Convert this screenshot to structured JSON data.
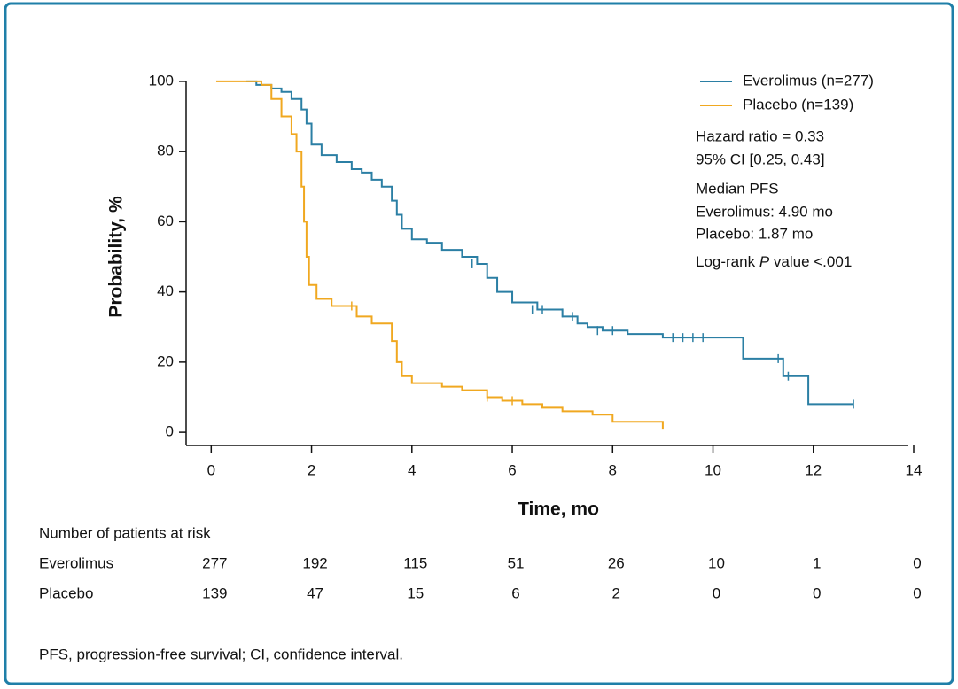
{
  "chart_data": {
    "type": "line",
    "step": "post",
    "x_label": "Time, mo",
    "y_label": "Probability, %",
    "xlim": [
      -0.5,
      14
    ],
    "ylim": [
      -3,
      102
    ],
    "xticks": [
      0,
      2,
      4,
      6,
      8,
      10,
      12,
      14
    ],
    "yticks": [
      0,
      20,
      40,
      60,
      80,
      100
    ],
    "series": [
      {
        "name": "Everolimus (n=277)",
        "color": "#2b7fa4",
        "x": [
          0.7,
          0.9,
          1.2,
          1.4,
          1.6,
          1.8,
          1.9,
          2.0,
          2.2,
          2.5,
          2.8,
          3.0,
          3.2,
          3.4,
          3.6,
          3.7,
          3.8,
          4.0,
          4.3,
          4.6,
          5.0,
          5.3,
          5.5,
          5.7,
          6.0,
          6.5,
          7.0,
          7.3,
          7.5,
          7.8,
          8.3,
          9.0,
          10.6,
          11.4,
          11.9,
          12.8
        ],
        "values": [
          100,
          99,
          98,
          97,
          95,
          92,
          88,
          82,
          79,
          77,
          75,
          74,
          72,
          70,
          66,
          62,
          58,
          55,
          54,
          52,
          50,
          48,
          44,
          40,
          37,
          35,
          33,
          31,
          30,
          29,
          28,
          27,
          21,
          16,
          8,
          8
        ],
        "censored_x": [
          5.2,
          6.4,
          6.6,
          7.0,
          7.2,
          7.7,
          8.0,
          9.2,
          9.4,
          9.6,
          9.8,
          11.3,
          11.5,
          12.8
        ],
        "censored_values": [
          48,
          35,
          35,
          34,
          33,
          29,
          29,
          27,
          27,
          27,
          27,
          21,
          16,
          8
        ]
      },
      {
        "name": "Placebo (n=139)",
        "color": "#f0a820",
        "x": [
          0.1,
          1.0,
          1.2,
          1.4,
          1.6,
          1.7,
          1.8,
          1.85,
          1.9,
          1.95,
          2.1,
          2.4,
          2.9,
          3.2,
          3.6,
          3.7,
          3.8,
          4.0,
          4.6,
          5.0,
          5.5,
          5.8,
          6.2,
          6.6,
          7.0,
          7.6,
          8.0,
          9.0
        ],
        "values": [
          100,
          99,
          95,
          90,
          85,
          80,
          70,
          60,
          50,
          42,
          38,
          36,
          33,
          31,
          26,
          20,
          16,
          14,
          13,
          12,
          10,
          9,
          8,
          7,
          6,
          5,
          3,
          1
        ],
        "censored_x": [
          2.8,
          5.5,
          6.0
        ],
        "censored_values": [
          36,
          10,
          9
        ]
      }
    ],
    "annotations": [
      "Hazard ratio = 0.33",
      "95% CI [0.25, 0.43]",
      "Median PFS",
      "Everolimus: 4.90 mo",
      "Placebo: 1.87 mo"
    ],
    "log_rank": [
      "Log-rank ",
      "P",
      " value <.001"
    ],
    "risk_table": {
      "title": "Number of patients at risk",
      "rows": [
        {
          "name": "Everolimus",
          "values": [
            277,
            192,
            115,
            51,
            26,
            10,
            1,
            0
          ]
        },
        {
          "name": "Placebo",
          "values": [
            139,
            47,
            15,
            6,
            2,
            0,
            0,
            0
          ]
        }
      ]
    },
    "footnote": "PFS, progression-free survival; CI, confidence interval."
  }
}
